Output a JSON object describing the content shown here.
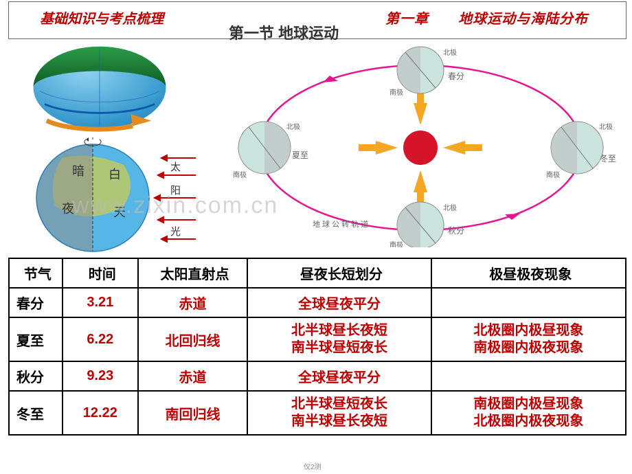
{
  "header": {
    "left": "基础知识与考点梳理",
    "center": "第一节 地球运动",
    "right_a": "第一章",
    "right_b": "地球运动与海陆分布"
  },
  "watermark": "www.zixin.com.cn",
  "footer": "仪2测",
  "globe_rot": {
    "ocean": "#56b7e6",
    "polar": "#2c9c49",
    "equator": "#0b5aaa",
    "arrow": "#e58a1f"
  },
  "globe_dn": {
    "ocean": "#56b7e6",
    "land": "#b8c96a",
    "night": "#8f8f8f",
    "line": "#555555",
    "sun_arrow": "#c00000",
    "labels": {
      "an": "暗",
      "bai": "白",
      "ye": "夜",
      "tian": "天",
      "tai": "太",
      "yang": "阳",
      "guang": "光"
    }
  },
  "orbit": {
    "sun_color": "#d5142a",
    "arrow_color": "#f5a623",
    "orbit_color": "#e41593",
    "globe_ocean": "#cbe5de",
    "globe_line": "#999999",
    "labels": {
      "north": "北极",
      "south": "南极",
      "chunfen": "春分",
      "xiazhi": "夏至",
      "qiufen": "秋分",
      "dongzhi": "冬至",
      "orbit_text": "地球公转轨道"
    },
    "text_color": "#666666"
  },
  "table": {
    "headers": [
      "节气",
      "时间",
      "太阳直射点",
      "昼夜长短划分",
      "极昼极夜现象"
    ],
    "rows": [
      {
        "jq": "春分",
        "sj": "3.21",
        "ty": "赤道",
        "zy": "全球昼夜平分",
        "jz": ""
      },
      {
        "jq": "夏至",
        "sj": "6.22",
        "ty": "北回归线",
        "zy": "北半球昼长夜短\n南半球昼短夜长",
        "jz": "北极圈内极昼现象\n南极圈内极夜现象"
      },
      {
        "jq": "秋分",
        "sj": "9.23",
        "ty": "赤道",
        "zy": "全球昼夜平分",
        "jz": ""
      },
      {
        "jq": "冬至",
        "sj": "12.22",
        "ty": "南回归线",
        "zy": "北半球昼短夜长\n南半球昼长夜短",
        "jz": "南极圈内极昼现象\n北极圈内极夜现象"
      }
    ]
  }
}
